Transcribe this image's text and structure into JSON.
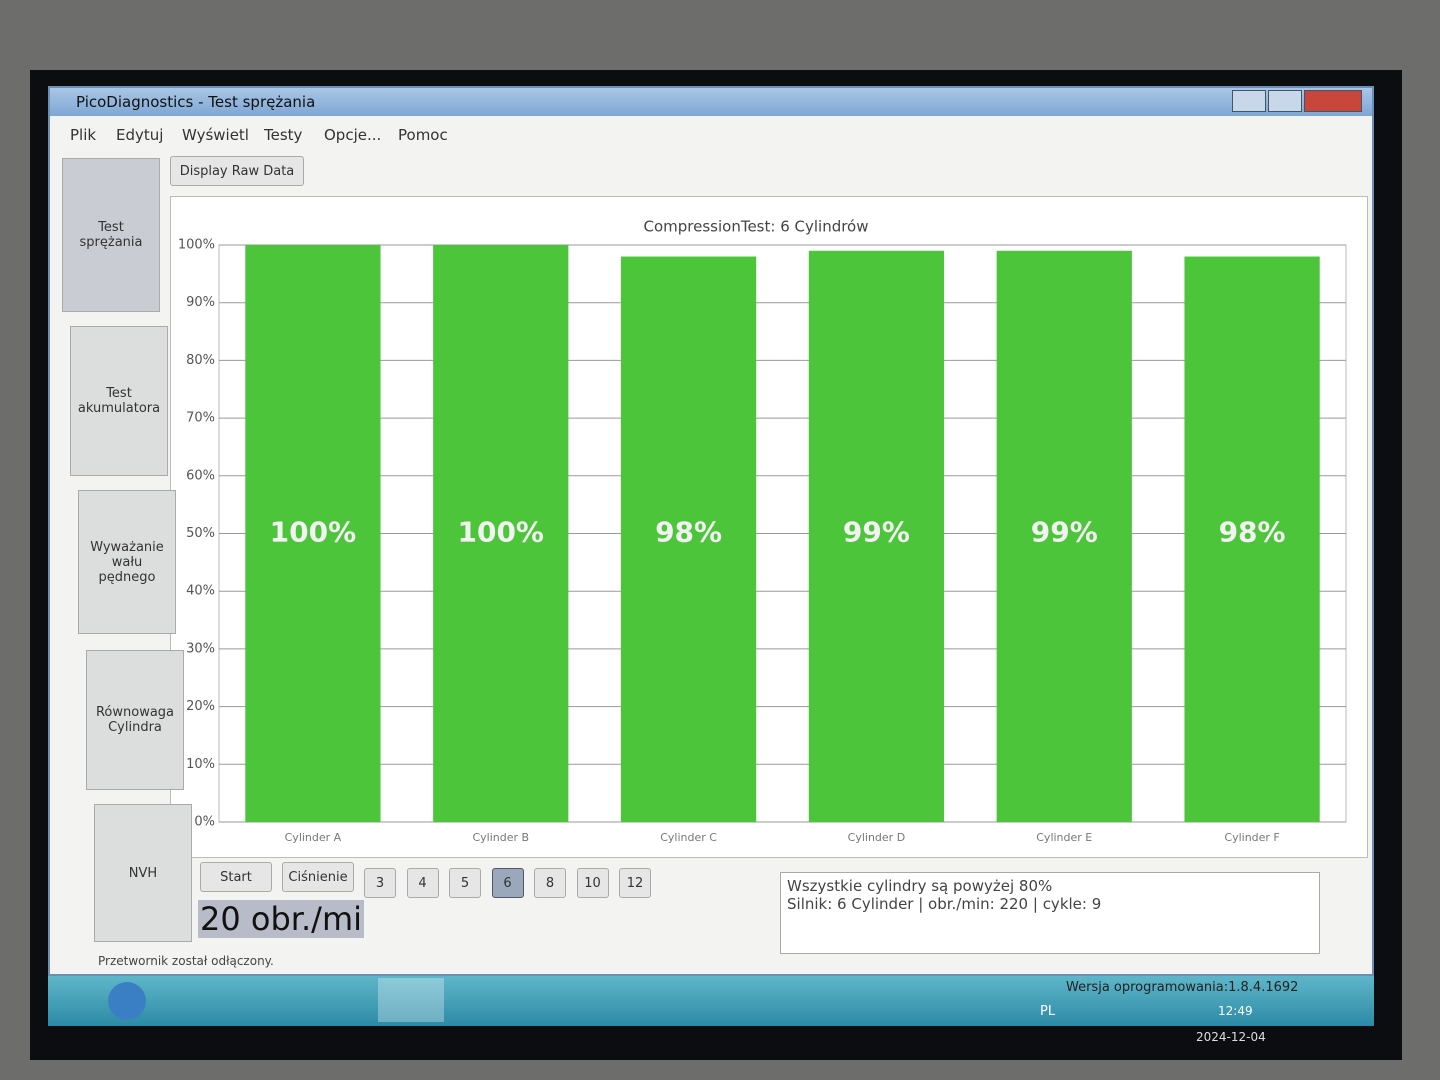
{
  "window": {
    "title": "PicoDiagnostics - Test sprężania",
    "menu": [
      "Plik",
      "Edytuj",
      "Wyświetl",
      "Testy",
      "Opcje...",
      "Pomoc"
    ],
    "sidebar": [
      [
        "Test",
        "sprężania"
      ],
      [
        "Test",
        "akumulatora"
      ],
      [
        "Wyważanie",
        "wału",
        "pędnego"
      ],
      [
        "Równowaga",
        "Cylindra"
      ],
      [
        "NVH"
      ]
    ],
    "raw_button": "Display Raw Data",
    "controls": [
      "Start",
      "Ciśnienie"
    ],
    "cylinder_buttons": [
      "3",
      "4",
      "5",
      "6",
      "8",
      "10",
      "12"
    ],
    "selected_cylinders": "6",
    "rpm_text": "20 obr./mi",
    "messages": [
      "Wszystkie cylindry są powyżej 80%",
      "Silnik: 6 Cylinder | obr./min: 220 | cykle: 9"
    ],
    "status": "Przetwornik został odłączony.",
    "version": "Wersja oprogramowania:1.8.4.1692"
  },
  "taskbar": {
    "language": "PL",
    "time": "12:49",
    "date": "2024-12-04"
  },
  "chart_data": {
    "type": "bar",
    "title": "CompressionTest: 6 Cylindrów",
    "categories": [
      "Cylinder A",
      "Cylinder B",
      "Cylinder C",
      "Cylinder D",
      "Cylinder E",
      "Cylinder F"
    ],
    "values": [
      100,
      100,
      98,
      99,
      99,
      98
    ],
    "value_labels": [
      "100%",
      "100%",
      "98%",
      "99%",
      "99%",
      "98%"
    ],
    "color": "#4cc53a",
    "ylim": [
      0,
      100
    ],
    "yticks": [
      {
        "value": 0,
        "label": "0%"
      },
      {
        "value": 10,
        "label": "10%"
      },
      {
        "value": 20,
        "label": "20%"
      },
      {
        "value": 30,
        "label": "30%"
      },
      {
        "value": 40,
        "label": "40%"
      },
      {
        "value": 50,
        "label": "50%"
      },
      {
        "value": 60,
        "label": "60%"
      },
      {
        "value": 70,
        "label": "70%"
      },
      {
        "value": 80,
        "label": "80%"
      },
      {
        "value": 90,
        "label": "90%"
      },
      {
        "value": 100,
        "label": "100%"
      }
    ],
    "grid": true
  }
}
